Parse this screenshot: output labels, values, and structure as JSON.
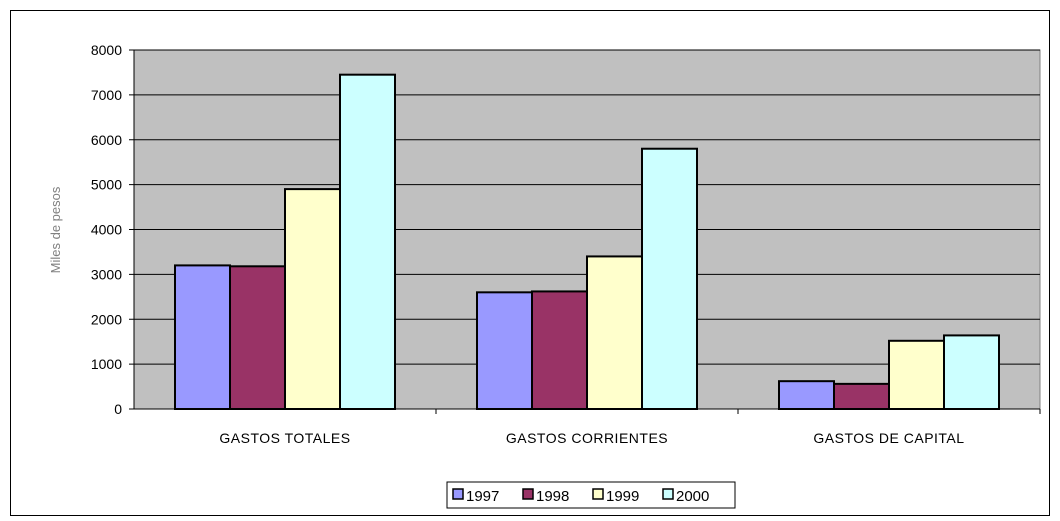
{
  "chart_data": {
    "type": "bar",
    "title": "",
    "xlabel": "",
    "ylabel": "Miles de pesos",
    "ylim": [
      0,
      8000
    ],
    "yticks": [
      0,
      1000,
      2000,
      3000,
      4000,
      5000,
      6000,
      7000,
      8000
    ],
    "categories": [
      "GASTOS TOTALES",
      "GASTOS CORRIENTES",
      "GASTOS DE CAPITAL"
    ],
    "series": [
      {
        "name": "1997",
        "color": "#9999ff",
        "values": [
          3200,
          2600,
          620
        ]
      },
      {
        "name": "1998",
        "color": "#993366",
        "values": [
          3180,
          2620,
          560
        ]
      },
      {
        "name": "1999",
        "color": "#ffffcc",
        "values": [
          4900,
          3400,
          1520
        ]
      },
      {
        "name": "2000",
        "color": "#ccffff",
        "values": [
          7450,
          5800,
          1640
        ]
      }
    ],
    "plot_background": "#c0c0c0",
    "grid": true,
    "legend_position": "bottom"
  }
}
